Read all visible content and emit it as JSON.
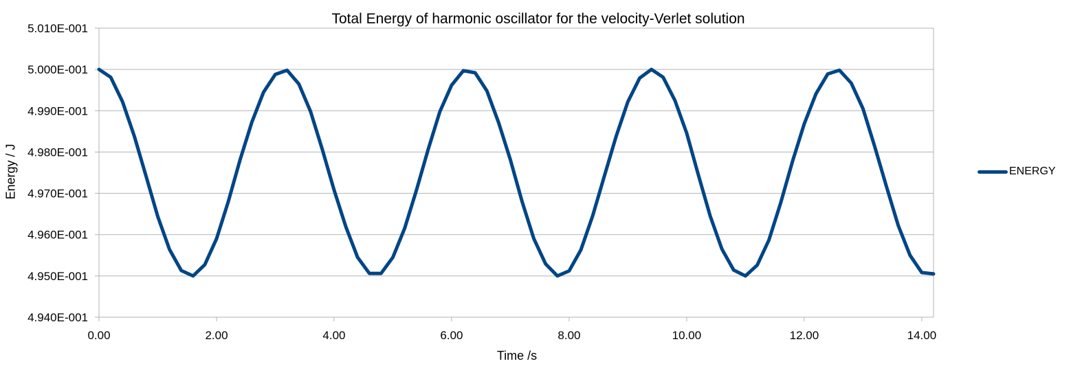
{
  "chart_data": {
    "type": "line",
    "title": "Total Energy of harmonic oscillator for the velocity-Verlet solution",
    "xlabel": "Time /s",
    "ylabel": "Energy / J",
    "xlim": [
      0,
      14.2
    ],
    "ylim": [
      0.494,
      0.501
    ],
    "x_ticks": [
      "0.00",
      "2.00",
      "4.00",
      "6.00",
      "8.00",
      "10.00",
      "12.00",
      "14.00"
    ],
    "y_ticks": [
      "4.940E-001",
      "4.950E-001",
      "4.960E-001",
      "4.970E-001",
      "4.980E-001",
      "4.990E-001",
      "5.000E-001",
      "5.010E-001"
    ],
    "grid": true,
    "legend_position": "right",
    "series": [
      {
        "name": "ENERGY",
        "color": "#004586",
        "x": [
          0.0,
          0.2,
          0.4,
          0.6,
          0.8,
          1.0,
          1.2,
          1.4,
          1.6,
          1.8,
          2.0,
          2.2,
          2.4,
          2.6,
          2.8,
          3.0,
          3.2,
          3.4,
          3.6,
          3.8,
          4.0,
          4.2,
          4.4,
          4.6,
          4.8,
          5.0,
          5.2,
          5.4,
          5.6,
          5.8,
          6.0,
          6.2,
          6.4,
          6.6,
          6.8,
          7.0,
          7.2,
          7.4,
          7.6,
          7.8,
          8.0,
          8.2,
          8.4,
          8.6,
          8.8,
          9.0,
          9.2,
          9.4,
          9.6,
          9.8,
          10.0,
          10.2,
          10.4,
          10.6,
          10.8,
          11.0,
          11.2,
          11.4,
          11.6,
          11.8,
          12.0,
          12.2,
          12.4,
          12.6,
          12.8,
          13.0,
          13.2,
          13.4,
          13.6,
          13.8,
          14.0,
          14.2
        ],
        "values": [
          0.5,
          0.49981,
          0.49922,
          0.49839,
          0.49742,
          0.49644,
          0.49564,
          0.49513,
          0.495,
          0.49527,
          0.4959,
          0.4968,
          0.49781,
          0.49872,
          0.49945,
          0.49988,
          0.49998,
          0.49965,
          0.49898,
          0.49806,
          0.49708,
          0.49619,
          0.49545,
          0.49506,
          0.49506,
          0.49545,
          0.49615,
          0.49707,
          0.49806,
          0.49898,
          0.49962,
          0.49997,
          0.49992,
          0.49948,
          0.49871,
          0.49781,
          0.4968,
          0.4959,
          0.49529,
          0.495,
          0.49512,
          0.49563,
          0.49645,
          0.49742,
          0.49838,
          0.49922,
          0.49979,
          0.5,
          0.49981,
          0.49925,
          0.49846,
          0.49744,
          0.49645,
          0.49565,
          0.49514,
          0.495,
          0.49526,
          0.49587,
          0.49677,
          0.49777,
          0.49868,
          0.49941,
          0.49989,
          0.49998,
          0.49967,
          0.49905,
          0.49813,
          0.49716,
          0.49622,
          0.4955,
          0.49508,
          0.49505
        ]
      }
    ]
  }
}
